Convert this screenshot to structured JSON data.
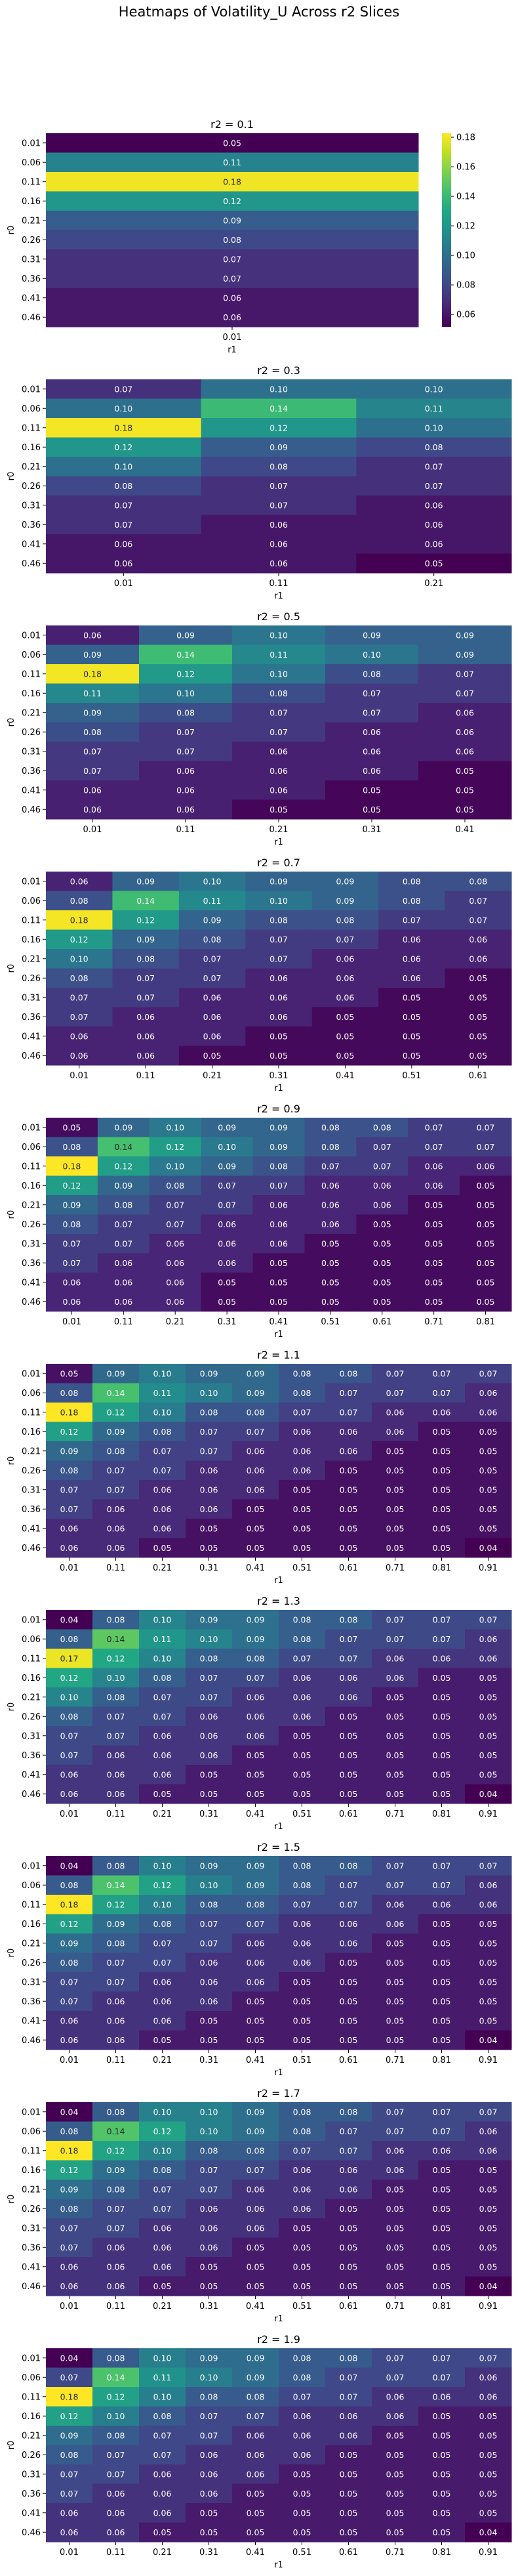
{
  "title": "Heatmaps of Volatility_U Across r2 Slices",
  "colormap": "viridis",
  "chart_data": [
    {
      "type": "heatmap",
      "title": "r2 = 0.1",
      "xlabel": "r1",
      "ylabel": "r0",
      "x_categories": [
        "0.01"
      ],
      "y_categories": [
        "0.01",
        "0.06",
        "0.11",
        "0.16",
        "0.21",
        "0.26",
        "0.31",
        "0.36",
        "0.41",
        "0.46"
      ],
      "color_range": [
        0.0516,
        0.1827
      ],
      "colorbar": {
        "ticks": [
          "0.06",
          "0.08",
          "0.10",
          "0.12",
          "0.14",
          "0.16",
          "0.18"
        ]
      },
      "values": [
        [
          0.05
        ],
        [
          0.11
        ],
        [
          0.18
        ],
        [
          0.12
        ],
        [
          0.09
        ],
        [
          0.08
        ],
        [
          0.07
        ],
        [
          0.07
        ],
        [
          0.06
        ],
        [
          0.06
        ]
      ]
    },
    {
      "type": "heatmap",
      "title": "r2 = 0.3",
      "xlabel": "r1",
      "ylabel": "r0",
      "x_categories": [
        "0.01",
        "0.11",
        "0.21"
      ],
      "y_categories": [
        "0.01",
        "0.06",
        "0.11",
        "0.16",
        "0.21",
        "0.26",
        "0.31",
        "0.36",
        "0.41",
        "0.46"
      ],
      "color_range": [
        0.052,
        0.182
      ],
      "values": [
        [
          0.07,
          0.1,
          0.1
        ],
        [
          0.1,
          0.14,
          0.11
        ],
        [
          0.18,
          0.12,
          0.1
        ],
        [
          0.12,
          0.09,
          0.08
        ],
        [
          0.1,
          0.08,
          0.07
        ],
        [
          0.08,
          0.07,
          0.07
        ],
        [
          0.07,
          0.07,
          0.06
        ],
        [
          0.07,
          0.06,
          0.06
        ],
        [
          0.06,
          0.06,
          0.06
        ],
        [
          0.06,
          0.06,
          0.05
        ]
      ]
    },
    {
      "type": "heatmap",
      "title": "r2 = 0.5",
      "xlabel": "r1",
      "ylabel": "r0",
      "x_categories": [
        "0.01",
        "0.11",
        "0.21",
        "0.31",
        "0.41"
      ],
      "y_categories": [
        "0.01",
        "0.06",
        "0.11",
        "0.16",
        "0.21",
        "0.26",
        "0.31",
        "0.36",
        "0.41",
        "0.46"
      ],
      "color_range": [
        0.048,
        0.182
      ],
      "values": [
        [
          0.06,
          0.09,
          0.1,
          0.09,
          0.09
        ],
        [
          0.09,
          0.14,
          0.11,
          0.1,
          0.09
        ],
        [
          0.18,
          0.12,
          0.1,
          0.08,
          0.07
        ],
        [
          0.11,
          0.1,
          0.08,
          0.07,
          0.07
        ],
        [
          0.09,
          0.08,
          0.07,
          0.07,
          0.06
        ],
        [
          0.08,
          0.07,
          0.07,
          0.06,
          0.06
        ],
        [
          0.07,
          0.07,
          0.06,
          0.06,
          0.06
        ],
        [
          0.07,
          0.06,
          0.06,
          0.06,
          0.05
        ],
        [
          0.06,
          0.06,
          0.06,
          0.05,
          0.05
        ],
        [
          0.06,
          0.06,
          0.05,
          0.05,
          0.05
        ]
      ]
    },
    {
      "type": "heatmap",
      "title": "r2 = 0.7",
      "xlabel": "r1",
      "ylabel": "r0",
      "x_categories": [
        "0.01",
        "0.11",
        "0.21",
        "0.31",
        "0.41",
        "0.51",
        "0.61"
      ],
      "y_categories": [
        "0.01",
        "0.06",
        "0.11",
        "0.16",
        "0.21",
        "0.26",
        "0.31",
        "0.36",
        "0.41",
        "0.46"
      ],
      "color_range": [
        0.047,
        0.182
      ],
      "values": [
        [
          0.06,
          0.09,
          0.1,
          0.09,
          0.09,
          0.08,
          0.08
        ],
        [
          0.08,
          0.14,
          0.11,
          0.1,
          0.09,
          0.08,
          0.07
        ],
        [
          0.18,
          0.12,
          0.09,
          0.08,
          0.08,
          0.07,
          0.07
        ],
        [
          0.12,
          0.09,
          0.08,
          0.07,
          0.07,
          0.06,
          0.06
        ],
        [
          0.1,
          0.08,
          0.07,
          0.07,
          0.06,
          0.06,
          0.06
        ],
        [
          0.08,
          0.07,
          0.07,
          0.06,
          0.06,
          0.06,
          0.05
        ],
        [
          0.07,
          0.07,
          0.06,
          0.06,
          0.06,
          0.05,
          0.05
        ],
        [
          0.07,
          0.06,
          0.06,
          0.06,
          0.05,
          0.05,
          0.05
        ],
        [
          0.06,
          0.06,
          0.06,
          0.05,
          0.05,
          0.05,
          0.05
        ],
        [
          0.06,
          0.06,
          0.05,
          0.05,
          0.05,
          0.05,
          0.05
        ]
      ]
    },
    {
      "type": "heatmap",
      "title": "r2 = 0.9",
      "xlabel": "r1",
      "ylabel": "r0",
      "x_categories": [
        "0.01",
        "0.11",
        "0.21",
        "0.31",
        "0.41",
        "0.51",
        "0.61",
        "0.71",
        "0.81"
      ],
      "y_categories": [
        "0.01",
        "0.06",
        "0.11",
        "0.16",
        "0.21",
        "0.26",
        "0.31",
        "0.36",
        "0.41",
        "0.46"
      ],
      "color_range": [
        0.046,
        0.18
      ],
      "values": [
        [
          0.05,
          0.09,
          0.1,
          0.09,
          0.09,
          0.08,
          0.08,
          0.07,
          0.07
        ],
        [
          0.08,
          0.14,
          0.12,
          0.1,
          0.09,
          0.08,
          0.07,
          0.07,
          0.07
        ],
        [
          0.18,
          0.12,
          0.1,
          0.09,
          0.08,
          0.07,
          0.07,
          0.06,
          0.06
        ],
        [
          0.12,
          0.09,
          0.08,
          0.07,
          0.07,
          0.06,
          0.06,
          0.06,
          0.05
        ],
        [
          0.09,
          0.08,
          0.07,
          0.07,
          0.06,
          0.06,
          0.06,
          0.05,
          0.05
        ],
        [
          0.08,
          0.07,
          0.07,
          0.06,
          0.06,
          0.06,
          0.05,
          0.05,
          0.05
        ],
        [
          0.07,
          0.07,
          0.06,
          0.06,
          0.06,
          0.05,
          0.05,
          0.05,
          0.05
        ],
        [
          0.07,
          0.06,
          0.06,
          0.06,
          0.05,
          0.05,
          0.05,
          0.05,
          0.05
        ],
        [
          0.06,
          0.06,
          0.06,
          0.05,
          0.05,
          0.05,
          0.05,
          0.05,
          0.05
        ],
        [
          0.06,
          0.06,
          0.06,
          0.05,
          0.05,
          0.05,
          0.05,
          0.05,
          0.05
        ]
      ]
    },
    {
      "type": "heatmap",
      "title": "r2 = 1.1",
      "xlabel": "r1",
      "ylabel": "r0",
      "x_categories": [
        "0.01",
        "0.11",
        "0.21",
        "0.31",
        "0.41",
        "0.51",
        "0.61",
        "0.71",
        "0.81",
        "0.91"
      ],
      "y_categories": [
        "0.01",
        "0.06",
        "0.11",
        "0.16",
        "0.21",
        "0.26",
        "0.31",
        "0.36",
        "0.41",
        "0.46"
      ],
      "color_range": [
        0.044,
        0.18
      ],
      "values": [
        [
          0.05,
          0.09,
          0.1,
          0.09,
          0.09,
          0.08,
          0.08,
          0.07,
          0.07,
          0.07
        ],
        [
          0.08,
          0.14,
          0.11,
          0.1,
          0.09,
          0.08,
          0.07,
          0.07,
          0.07,
          0.06
        ],
        [
          0.18,
          0.12,
          0.1,
          0.08,
          0.08,
          0.07,
          0.07,
          0.06,
          0.06,
          0.06
        ],
        [
          0.12,
          0.09,
          0.08,
          0.07,
          0.07,
          0.06,
          0.06,
          0.06,
          0.05,
          0.05
        ],
        [
          0.09,
          0.08,
          0.07,
          0.07,
          0.06,
          0.06,
          0.06,
          0.05,
          0.05,
          0.05
        ],
        [
          0.08,
          0.07,
          0.07,
          0.06,
          0.06,
          0.06,
          0.05,
          0.05,
          0.05,
          0.05
        ],
        [
          0.07,
          0.07,
          0.06,
          0.06,
          0.06,
          0.05,
          0.05,
          0.05,
          0.05,
          0.05
        ],
        [
          0.07,
          0.06,
          0.06,
          0.06,
          0.05,
          0.05,
          0.05,
          0.05,
          0.05,
          0.05
        ],
        [
          0.06,
          0.06,
          0.06,
          0.05,
          0.05,
          0.05,
          0.05,
          0.05,
          0.05,
          0.05
        ],
        [
          0.06,
          0.06,
          0.05,
          0.05,
          0.05,
          0.05,
          0.05,
          0.05,
          0.05,
          0.04
        ]
      ]
    },
    {
      "type": "heatmap",
      "title": "r2 = 1.3",
      "xlabel": "r1",
      "ylabel": "r0",
      "x_categories": [
        "0.01",
        "0.11",
        "0.21",
        "0.31",
        "0.41",
        "0.51",
        "0.61",
        "0.71",
        "0.81",
        "0.91"
      ],
      "y_categories": [
        "0.01",
        "0.06",
        "0.11",
        "0.16",
        "0.21",
        "0.26",
        "0.31",
        "0.36",
        "0.41",
        "0.46"
      ],
      "color_range": [
        0.04,
        0.174
      ],
      "values": [
        [
          0.04,
          0.08,
          0.1,
          0.09,
          0.09,
          0.08,
          0.08,
          0.07,
          0.07,
          0.07
        ],
        [
          0.08,
          0.14,
          0.11,
          0.1,
          0.09,
          0.08,
          0.07,
          0.07,
          0.07,
          0.06
        ],
        [
          0.17,
          0.12,
          0.1,
          0.08,
          0.08,
          0.07,
          0.07,
          0.06,
          0.06,
          0.06
        ],
        [
          0.12,
          0.1,
          0.08,
          0.07,
          0.07,
          0.06,
          0.06,
          0.06,
          0.05,
          0.05
        ],
        [
          0.1,
          0.08,
          0.07,
          0.07,
          0.06,
          0.06,
          0.06,
          0.05,
          0.05,
          0.05
        ],
        [
          0.08,
          0.07,
          0.07,
          0.06,
          0.06,
          0.06,
          0.05,
          0.05,
          0.05,
          0.05
        ],
        [
          0.07,
          0.07,
          0.06,
          0.06,
          0.06,
          0.05,
          0.05,
          0.05,
          0.05,
          0.05
        ],
        [
          0.07,
          0.06,
          0.06,
          0.06,
          0.05,
          0.05,
          0.05,
          0.05,
          0.05,
          0.05
        ],
        [
          0.06,
          0.06,
          0.06,
          0.05,
          0.05,
          0.05,
          0.05,
          0.05,
          0.05,
          0.05
        ],
        [
          0.06,
          0.06,
          0.05,
          0.05,
          0.05,
          0.05,
          0.05,
          0.05,
          0.05,
          0.04
        ]
      ]
    },
    {
      "type": "heatmap",
      "title": "r2 = 1.5",
      "xlabel": "r1",
      "ylabel": "r0",
      "x_categories": [
        "0.01",
        "0.11",
        "0.21",
        "0.31",
        "0.41",
        "0.51",
        "0.61",
        "0.71",
        "0.81",
        "0.91"
      ],
      "y_categories": [
        "0.01",
        "0.06",
        "0.11",
        "0.16",
        "0.21",
        "0.26",
        "0.31",
        "0.36",
        "0.41",
        "0.46"
      ],
      "color_range": [
        0.04,
        0.18
      ],
      "values": [
        [
          0.04,
          0.08,
          0.1,
          0.09,
          0.09,
          0.08,
          0.08,
          0.07,
          0.07,
          0.07
        ],
        [
          0.08,
          0.14,
          0.12,
          0.1,
          0.09,
          0.08,
          0.07,
          0.07,
          0.07,
          0.06
        ],
        [
          0.18,
          0.12,
          0.1,
          0.08,
          0.08,
          0.07,
          0.07,
          0.06,
          0.06,
          0.06
        ],
        [
          0.12,
          0.09,
          0.08,
          0.07,
          0.07,
          0.06,
          0.06,
          0.06,
          0.05,
          0.05
        ],
        [
          0.09,
          0.08,
          0.07,
          0.07,
          0.06,
          0.06,
          0.06,
          0.05,
          0.05,
          0.05
        ],
        [
          0.08,
          0.07,
          0.07,
          0.06,
          0.06,
          0.06,
          0.05,
          0.05,
          0.05,
          0.05
        ],
        [
          0.07,
          0.07,
          0.06,
          0.06,
          0.06,
          0.05,
          0.05,
          0.05,
          0.05,
          0.05
        ],
        [
          0.07,
          0.06,
          0.06,
          0.06,
          0.05,
          0.05,
          0.05,
          0.05,
          0.05,
          0.05
        ],
        [
          0.06,
          0.06,
          0.06,
          0.05,
          0.05,
          0.05,
          0.05,
          0.05,
          0.05,
          0.05
        ],
        [
          0.06,
          0.06,
          0.05,
          0.05,
          0.05,
          0.05,
          0.05,
          0.05,
          0.05,
          0.04
        ]
      ]
    },
    {
      "type": "heatmap",
      "title": "r2 = 1.7",
      "xlabel": "r1",
      "ylabel": "r0",
      "x_categories": [
        "0.01",
        "0.11",
        "0.21",
        "0.31",
        "0.41",
        "0.51",
        "0.61",
        "0.71",
        "0.81",
        "0.91"
      ],
      "y_categories": [
        "0.01",
        "0.06",
        "0.11",
        "0.16",
        "0.21",
        "0.26",
        "0.31",
        "0.36",
        "0.41",
        "0.46"
      ],
      "color_range": [
        0.04,
        0.178
      ],
      "values": [
        [
          0.04,
          0.08,
          0.1,
          0.1,
          0.09,
          0.08,
          0.08,
          0.07,
          0.07,
          0.07
        ],
        [
          0.08,
          0.14,
          0.12,
          0.1,
          0.09,
          0.08,
          0.07,
          0.07,
          0.07,
          0.06
        ],
        [
          0.18,
          0.12,
          0.1,
          0.08,
          0.08,
          0.07,
          0.07,
          0.06,
          0.06,
          0.06
        ],
        [
          0.12,
          0.09,
          0.08,
          0.07,
          0.07,
          0.06,
          0.06,
          0.06,
          0.05,
          0.05
        ],
        [
          0.09,
          0.08,
          0.07,
          0.07,
          0.06,
          0.06,
          0.06,
          0.05,
          0.05,
          0.05
        ],
        [
          0.08,
          0.07,
          0.07,
          0.06,
          0.06,
          0.06,
          0.05,
          0.05,
          0.05,
          0.05
        ],
        [
          0.07,
          0.07,
          0.06,
          0.06,
          0.06,
          0.05,
          0.05,
          0.05,
          0.05,
          0.05
        ],
        [
          0.07,
          0.06,
          0.06,
          0.06,
          0.05,
          0.05,
          0.05,
          0.05,
          0.05,
          0.05
        ],
        [
          0.06,
          0.06,
          0.06,
          0.05,
          0.05,
          0.05,
          0.05,
          0.05,
          0.05,
          0.05
        ],
        [
          0.06,
          0.06,
          0.05,
          0.05,
          0.05,
          0.05,
          0.05,
          0.05,
          0.05,
          0.04
        ]
      ]
    },
    {
      "type": "heatmap",
      "title": "r2 = 1.9",
      "xlabel": "r1",
      "ylabel": "r0",
      "x_categories": [
        "0.01",
        "0.11",
        "0.21",
        "0.31",
        "0.41",
        "0.51",
        "0.61",
        "0.71",
        "0.81",
        "0.91"
      ],
      "y_categories": [
        "0.01",
        "0.06",
        "0.11",
        "0.16",
        "0.21",
        "0.26",
        "0.31",
        "0.36",
        "0.41",
        "0.46"
      ],
      "color_range": [
        0.04,
        0.18
      ],
      "values": [
        [
          0.04,
          0.08,
          0.1,
          0.09,
          0.09,
          0.08,
          0.08,
          0.07,
          0.07,
          0.07
        ],
        [
          0.07,
          0.14,
          0.11,
          0.1,
          0.09,
          0.08,
          0.07,
          0.07,
          0.07,
          0.06
        ],
        [
          0.18,
          0.12,
          0.1,
          0.08,
          0.08,
          0.07,
          0.07,
          0.06,
          0.06,
          0.06
        ],
        [
          0.12,
          0.1,
          0.08,
          0.07,
          0.07,
          0.06,
          0.06,
          0.06,
          0.05,
          0.05
        ],
        [
          0.09,
          0.08,
          0.07,
          0.07,
          0.06,
          0.06,
          0.06,
          0.05,
          0.05,
          0.05
        ],
        [
          0.08,
          0.07,
          0.07,
          0.06,
          0.06,
          0.06,
          0.05,
          0.05,
          0.05,
          0.05
        ],
        [
          0.07,
          0.07,
          0.06,
          0.06,
          0.06,
          0.05,
          0.05,
          0.05,
          0.05,
          0.05
        ],
        [
          0.07,
          0.06,
          0.06,
          0.06,
          0.05,
          0.05,
          0.05,
          0.05,
          0.05,
          0.05
        ],
        [
          0.06,
          0.06,
          0.06,
          0.05,
          0.05,
          0.05,
          0.05,
          0.05,
          0.05,
          0.05
        ],
        [
          0.06,
          0.06,
          0.05,
          0.05,
          0.05,
          0.05,
          0.05,
          0.05,
          0.05,
          0.04
        ]
      ]
    }
  ]
}
